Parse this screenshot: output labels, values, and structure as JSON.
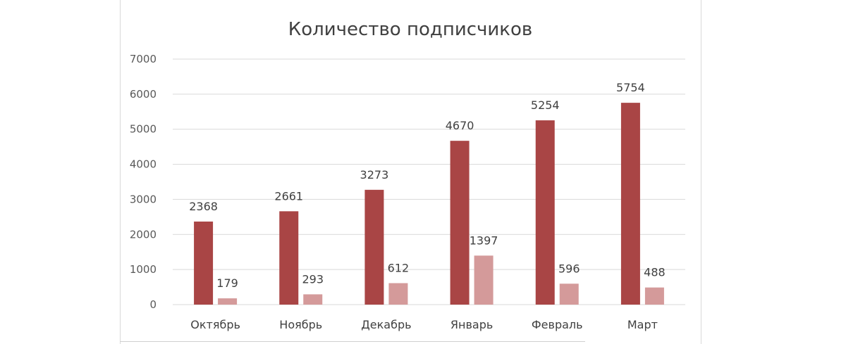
{
  "chart_data": {
    "type": "bar",
    "title": "Количество подписчиков",
    "xlabel": "",
    "ylabel": "",
    "categories": [
      "Октябрь",
      "Ноябрь",
      "Декабрь",
      "Январь",
      "Февраль",
      "Март"
    ],
    "series": [
      {
        "values": [
          2368,
          2661,
          3273,
          4670,
          5254,
          5754
        ],
        "color": "#a94545"
      },
      {
        "values": [
          179,
          293,
          612,
          1397,
          596,
          488
        ],
        "color": "#d49a9a"
      }
    ],
    "ylim": [
      0,
      7000
    ],
    "yticks": [
      0,
      1000,
      2000,
      3000,
      4000,
      5000,
      6000,
      7000
    ],
    "grid": true,
    "legend": "none",
    "data_labels": true
  }
}
